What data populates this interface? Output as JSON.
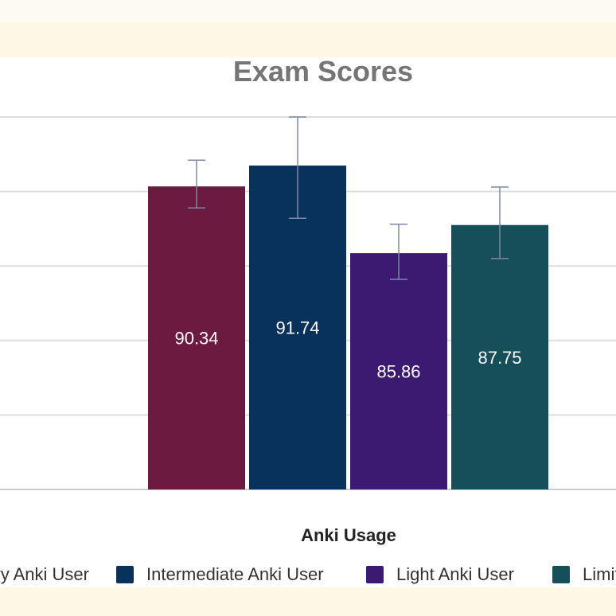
{
  "chart_data": {
    "type": "bar",
    "title": "Exam Scores",
    "xlabel": "Anki Usage",
    "ylabel": "",
    "ylim": [
      70,
      95
    ],
    "grid": true,
    "legend_position": "bottom",
    "show_value_labels": true,
    "series": [
      {
        "name": "Heavy Anki User",
        "value": 90.34,
        "value_label": "90.34",
        "error_low": 88.9,
        "error_high": 92.1,
        "color": "#6d1a41"
      },
      {
        "name": "Intermediate Anki User",
        "value": 91.74,
        "value_label": "91.74",
        "error_low": 88.2,
        "error_high": 95.0,
        "color": "#08325c"
      },
      {
        "name": "Light Anki User",
        "value": 85.86,
        "value_label": "85.86",
        "error_low": 84.1,
        "error_high": 87.8,
        "color": "#3c1a72"
      },
      {
        "name": "Limited Anki User",
        "value": 87.75,
        "value_label": "87.75",
        "error_low": 85.5,
        "error_high": 90.3,
        "color": "#164e5a"
      }
    ],
    "legend_entries": [
      {
        "label": "Heavy Anki User",
        "color": "#6d1a41"
      },
      {
        "label": "Intermediate Anki User",
        "color": "#08325c"
      },
      {
        "label": "Light Anki User",
        "color": "#3c1a72"
      },
      {
        "label": "Limited Anki User",
        "color": "#164e5a"
      }
    ]
  }
}
